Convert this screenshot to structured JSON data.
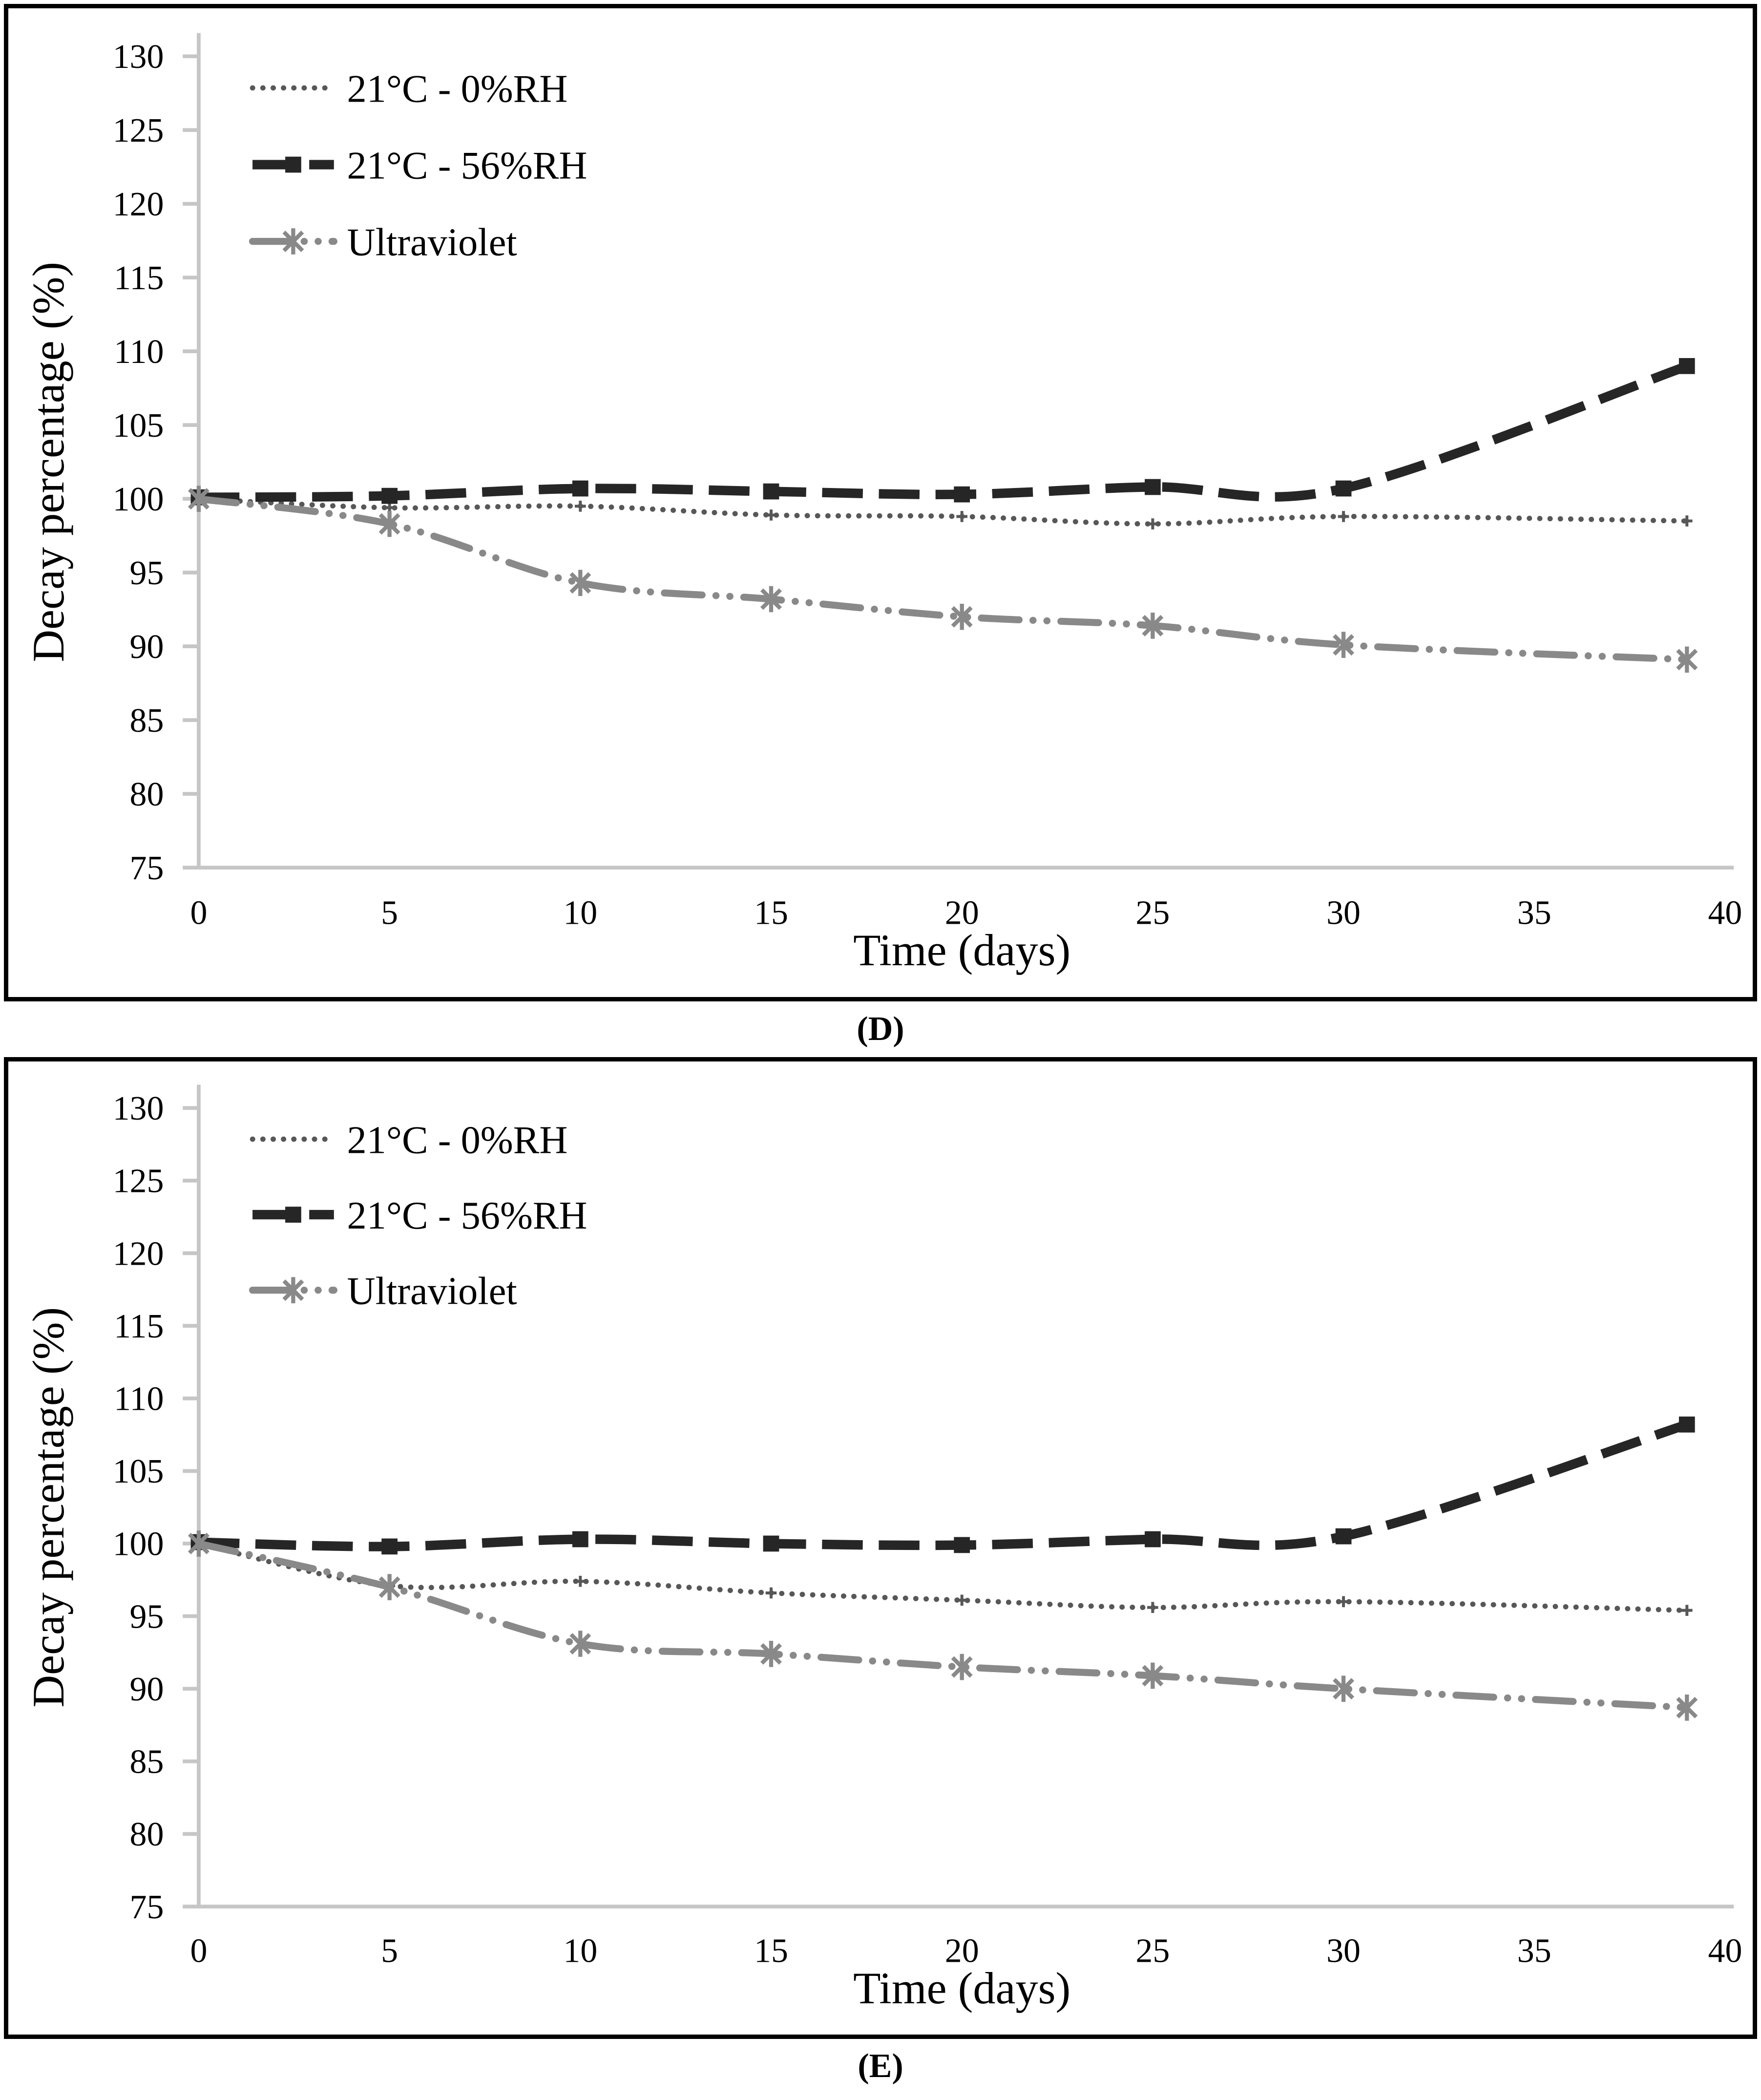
{
  "page": {
    "background": "#ffffff"
  },
  "colors": {
    "axis": "#c6c6c6",
    "text": "#000000",
    "panel_border": "#000000",
    "series_dotted": "#575757",
    "series_dashed": "#262626",
    "series_ultraviolet": "#898989"
  },
  "chart_data": [
    {
      "id": "D",
      "type": "line",
      "caption": "(D)",
      "xlabel": "Time (days)",
      "ylabel": "Decay percentage (%)",
      "xlim": [
        0,
        40
      ],
      "ylim": [
        75,
        130
      ],
      "xticks": [
        0,
        5,
        10,
        15,
        20,
        25,
        30,
        35,
        40
      ],
      "yticks": [
        75,
        80,
        85,
        90,
        95,
        100,
        105,
        110,
        115,
        120,
        125,
        130
      ],
      "grid": false,
      "legend_position": "top-left",
      "x": [
        0,
        5,
        10,
        15,
        20,
        25,
        30,
        39
      ],
      "series": [
        {
          "name": "21°C - 0%RH",
          "color": "#575757",
          "line": "dotted",
          "marker": "plus",
          "values": [
            100,
            99.4,
            99.5,
            98.9,
            98.8,
            98.3,
            98.8,
            98.5
          ]
        },
        {
          "name": "21°C - 56%RH",
          "color": "#262626",
          "line": "dashed",
          "marker": "square",
          "values": [
            100.1,
            100.2,
            100.7,
            100.5,
            100.3,
            100.8,
            100.7,
            109.0
          ]
        },
        {
          "name": "Ultraviolet",
          "color": "#898989",
          "line": "dash-dot-dot",
          "marker": "asterisk",
          "values": [
            100,
            98.3,
            94.3,
            93.2,
            92.0,
            91.4,
            90.1,
            89.1
          ]
        }
      ]
    },
    {
      "id": "E",
      "type": "line",
      "caption": "(E)",
      "xlabel": "Time (days)",
      "ylabel": "Decay percentage (%)",
      "xlim": [
        0,
        40
      ],
      "ylim": [
        75,
        130
      ],
      "xticks": [
        0,
        5,
        10,
        15,
        20,
        25,
        30,
        35,
        40
      ],
      "yticks": [
        75,
        80,
        85,
        90,
        95,
        100,
        105,
        110,
        115,
        120,
        125,
        130
      ],
      "grid": false,
      "legend_position": "top-left",
      "x": [
        0,
        5,
        10,
        15,
        20,
        25,
        30,
        39
      ],
      "series": [
        {
          "name": "21°C - 0%RH",
          "color": "#575757",
          "line": "dotted",
          "marker": "plus",
          "values": [
            100,
            97.1,
            97.4,
            96.6,
            96.1,
            95.6,
            96.0,
            95.4
          ]
        },
        {
          "name": "21°C - 56%RH",
          "color": "#262626",
          "line": "dashed",
          "marker": "square",
          "values": [
            100.1,
            99.8,
            100.3,
            100.0,
            99.9,
            100.3,
            100.5,
            108.2
          ]
        },
        {
          "name": "Ultraviolet",
          "color": "#898989",
          "line": "dash-dot-dot",
          "marker": "asterisk",
          "values": [
            100,
            97.0,
            93.1,
            92.4,
            91.5,
            90.9,
            90.0,
            88.7
          ]
        }
      ]
    }
  ]
}
